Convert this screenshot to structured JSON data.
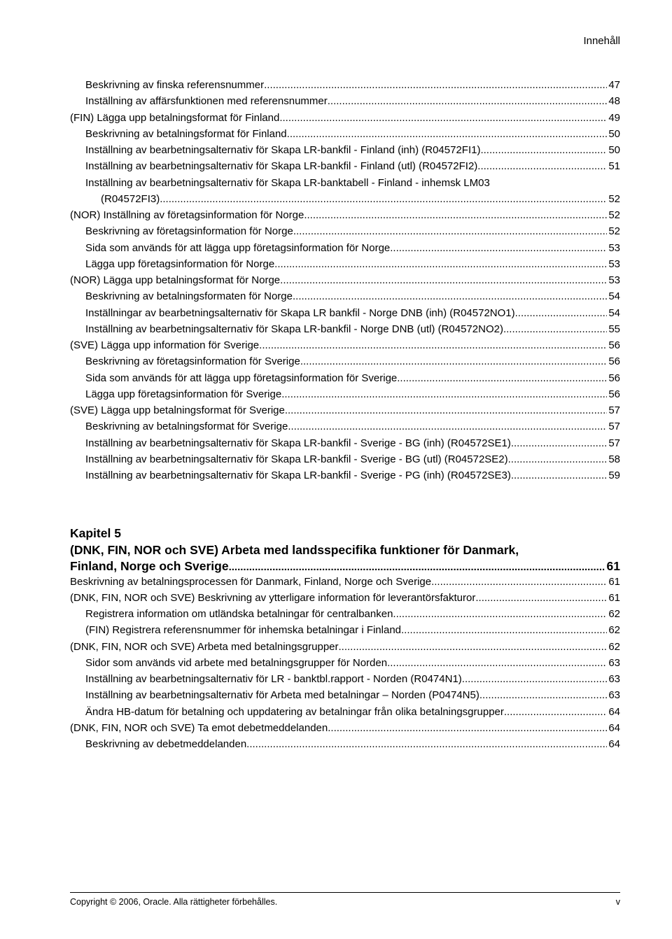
{
  "header": {
    "section_label": "Innehåll"
  },
  "toc_block1": [
    {
      "indent": 1,
      "label": "Beskrivning av finska referensnummer",
      "page": "47"
    },
    {
      "indent": 1,
      "label": "Inställning av affärsfunktionen med referensnummer",
      "page": "48"
    },
    {
      "indent": 0,
      "label": "(FIN) Lägga upp betalningsformat för Finland",
      "page": "49"
    },
    {
      "indent": 1,
      "label": "Beskrivning av betalningsformat för Finland",
      "page": "50"
    },
    {
      "indent": 1,
      "label": "Inställning av bearbetningsalternativ för Skapa LR-bankfil - Finland (inh) (R04572FI1)",
      "page": "50"
    },
    {
      "indent": 1,
      "label": "Inställning av bearbetningsalternativ för Skapa LR-bankfil - Finland (utl) (R04572FI2)",
      "page": "51"
    },
    {
      "indent": 1,
      "label": "Inställning av bearbetningsalternativ för Skapa LR-banktabell - Finland - inhemsk LM03",
      "page": ""
    },
    {
      "indent": 2,
      "label": "(R04572FI3)",
      "page": "52"
    },
    {
      "indent": 0,
      "label": "(NOR) Inställning av företagsinformation för Norge",
      "page": "52"
    },
    {
      "indent": 1,
      "label": "Beskrivning av företagsinformation för Norge",
      "page": "52"
    },
    {
      "indent": 1,
      "label": "Sida som används för att lägga upp företagsinformation för Norge",
      "page": "53"
    },
    {
      "indent": 1,
      "label": "Lägga upp företagsinformation för Norge",
      "page": "53"
    },
    {
      "indent": 0,
      "label": "(NOR) Lägga upp betalningsformat för Norge",
      "page": "53"
    },
    {
      "indent": 1,
      "label": "Beskrivning av betalningsformaten för Norge",
      "page": "54"
    },
    {
      "indent": 1,
      "label": "Inställningar av bearbetningsalternativ för Skapa LR bankfil - Norge DNB (inh) (R04572NO1)",
      "page": "54"
    },
    {
      "indent": 1,
      "label": "Inställning av bearbetningsalternativ för Skapa LR-bankfil - Norge DNB (utl) (R04572NO2)",
      "page": "55"
    },
    {
      "indent": 0,
      "label": "(SVE) Lägga upp information för Sverige",
      "page": "56"
    },
    {
      "indent": 1,
      "label": "Beskrivning av företagsinformation för Sverige",
      "page": "56"
    },
    {
      "indent": 1,
      "label": "Sida som används för att lägga upp företagsinformation för Sverige",
      "page": "56"
    },
    {
      "indent": 1,
      "label": "Lägga upp företagsinformation för Sverige",
      "page": "56"
    },
    {
      "indent": 0,
      "label": "(SVE) Lägga upp betalningsformat för Sverige",
      "page": "57"
    },
    {
      "indent": 1,
      "label": "Beskrivning av betalningsformat för Sverige",
      "page": "57"
    },
    {
      "indent": 1,
      "label": "Inställning av bearbetningsalternativ för Skapa LR-bankfil - Sverige - BG (inh) (R04572SE1)",
      "page": "57"
    },
    {
      "indent": 1,
      "label": "Inställning av bearbetningsalternativ för Skapa LR-bankfil - Sverige - BG (utl) (R04572SE2)",
      "page": "58"
    },
    {
      "indent": 1,
      "label": "Inställning av bearbetningsalternativ för Skapa LR-bankfil - Sverige - PG (inh) (R04572SE3)",
      "page": "59"
    }
  ],
  "chapter": {
    "number_label": "Kapitel 5",
    "title_line1": "(DNK, FIN, NOR och SVE) Arbeta med landsspecifika funktioner för Danmark,",
    "title_line2": "Finland, Norge och Sverige",
    "page": "61"
  },
  "toc_block2": [
    {
      "indent": 0,
      "label": "Beskrivning av betalningsprocessen för Danmark, Finland, Norge och Sverige",
      "page": "61"
    },
    {
      "indent": 0,
      "label": "(DNK, FIN, NOR och SVE) Beskrivning av ytterligare information för leverantörsfakturor",
      "page": "61"
    },
    {
      "indent": 1,
      "label": "Registrera information om utländska betalningar för centralbanken",
      "page": "62"
    },
    {
      "indent": 1,
      "label": "(FIN) Registrera referensnummer för inhemska betalningar i Finland",
      "page": "62"
    },
    {
      "indent": 0,
      "label": "(DNK, FIN, NOR och SVE) Arbeta med betalningsgrupper",
      "page": "62"
    },
    {
      "indent": 1,
      "label": "Sidor som används vid arbete med betalningsgrupper för Norden",
      "page": "63"
    },
    {
      "indent": 1,
      "label": "Inställning av bearbetningsalternativ för LR - banktbl.rapport - Norden (R0474N1)",
      "page": "63"
    },
    {
      "indent": 1,
      "label": "Inställning av bearbetningsalternativ för Arbeta med betalningar – Norden (P0474N5)",
      "page": "63"
    },
    {
      "indent": 1,
      "label": "Ändra HB-datum för betalning och uppdatering av betalningar från olika betalningsgrupper",
      "page": "64"
    },
    {
      "indent": 0,
      "label": "(DNK, FIN, NOR och SVE) Ta emot debetmeddelanden",
      "page": "64"
    },
    {
      "indent": 1,
      "label": "Beskrivning av debetmeddelanden",
      "page": "64"
    }
  ],
  "footer": {
    "left": "Copyright © 2006, Oracle. Alla rättigheter förbehålles.",
    "right": "v"
  }
}
